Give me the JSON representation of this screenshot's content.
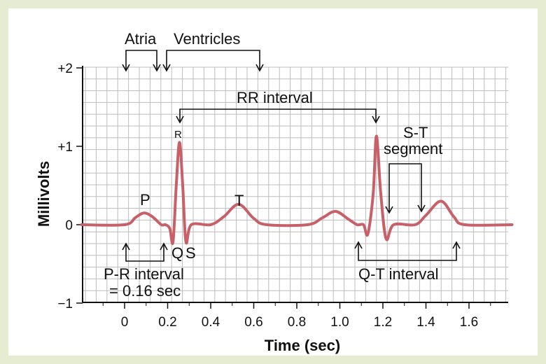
{
  "chart_data": {
    "type": "line",
    "xlabel": "Time (sec)",
    "ylabel": "Millivolts",
    "xlim": [
      -0.2,
      1.8
    ],
    "ylim": [
      -1,
      2
    ],
    "x_ticks": [
      "0",
      "0.2",
      "0.4",
      "0.6",
      "0.8",
      "1.0",
      "1.2",
      "1.4",
      "1.6"
    ],
    "x_tick_values": [
      0,
      0.2,
      0.4,
      0.6,
      0.8,
      1.0,
      1.2,
      1.4,
      1.6
    ],
    "y_ticks": [
      "+2",
      "+1",
      "0",
      "−1"
    ],
    "y_tick_values": [
      2,
      1,
      0,
      -1
    ],
    "grid": true,
    "series": [
      {
        "color": "#c8606a",
        "x": [
          -0.2,
          0.0,
          0.05,
          0.09,
          0.13,
          0.17,
          0.19,
          0.21,
          0.225,
          0.24,
          0.255,
          0.27,
          0.285,
          0.31,
          0.4,
          0.46,
          0.53,
          0.6,
          0.66,
          0.85,
          0.92,
          0.98,
          1.04,
          1.08,
          1.11,
          1.13,
          1.155,
          1.17,
          1.19,
          1.215,
          1.25,
          1.35,
          1.4,
          1.47,
          1.53,
          1.58,
          1.8
        ],
        "y": [
          0,
          0,
          0.09,
          0.15,
          0.1,
          0,
          0,
          -0.05,
          -0.22,
          0.5,
          1.05,
          0.5,
          -0.22,
          0,
          0,
          0.1,
          0.26,
          0.08,
          0,
          0,
          0.09,
          0.17,
          0.07,
          0,
          0,
          -0.12,
          0.4,
          1.13,
          0.4,
          -0.18,
          0,
          0,
          0.12,
          0.3,
          0.1,
          0,
          0
        ]
      }
    ],
    "annotations": {
      "atria": "Atria",
      "ventricles": "Ventricles",
      "rr_interval": "RR interval",
      "r": "R",
      "p": "P",
      "t": "T",
      "q": "Q",
      "s": "S",
      "st_line1": "S-T",
      "st_line2": "segment",
      "pr_line1": "P-R interval",
      "pr_line2": "= 0.16 sec",
      "qt_interval": "Q-T interval"
    }
  }
}
